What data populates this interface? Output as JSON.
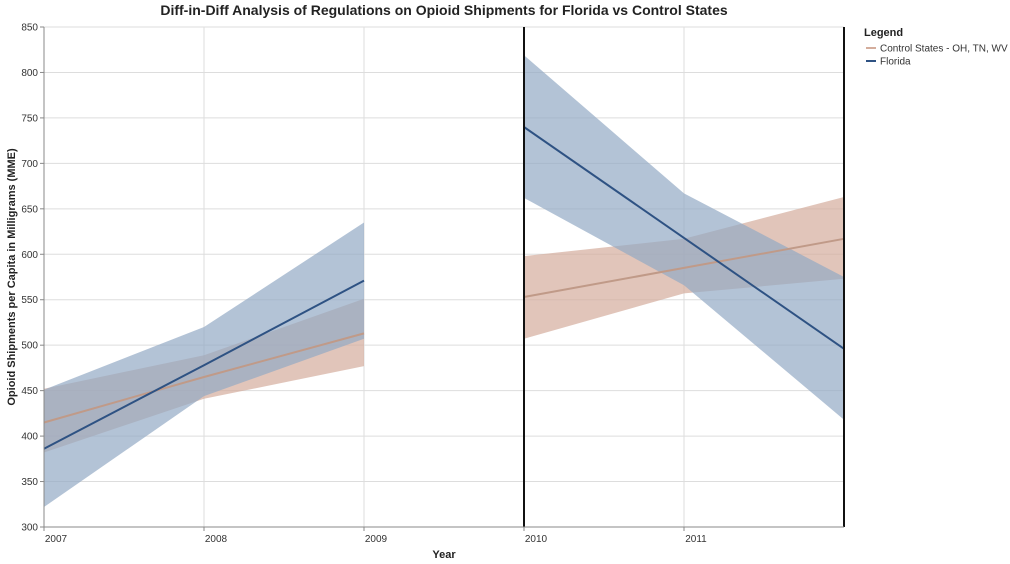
{
  "chart_data": {
    "type": "line",
    "title": "Diff-in-Diff Analysis of Regulations on Opioid Shipments for Florida vs Control States",
    "xlabel": "Year",
    "ylabel": "Opioid Shipments per Capita in Milligrams (MME)",
    "xlim": [
      2007,
      2012
    ],
    "ylim": [
      300,
      850
    ],
    "x_ticks": [
      2007,
      2008,
      2009,
      2010,
      2011
    ],
    "y_ticks": [
      300,
      350,
      400,
      450,
      500,
      550,
      600,
      650,
      700,
      750,
      800,
      850
    ],
    "grid": true,
    "policy_lines": [
      2010,
      2012
    ],
    "legend": {
      "title": "Legend",
      "placement": "right",
      "entries": [
        "Control States - OH, TN, WV",
        "Florida"
      ]
    },
    "series": [
      {
        "name": "Control States - OH, TN, WV",
        "color": "#c09a88",
        "band_color": "#d4ad9c",
        "segments": [
          {
            "x": [
              2007,
              2008,
              2009
            ],
            "y": [
              415,
              465,
              513
            ],
            "lower": [
              382,
              441,
              477
            ],
            "upper": [
              452,
              489,
              551
            ]
          },
          {
            "x": [
              2010,
              2011,
              2012
            ],
            "y": [
              553,
              585,
              617
            ],
            "lower": [
              507,
              557,
              573
            ],
            "upper": [
              598,
              617,
              663
            ]
          }
        ]
      },
      {
        "name": "Florida",
        "color": "#2e5283",
        "band_color": "#93a9c4",
        "segments": [
          {
            "x": [
              2007,
              2008,
              2009
            ],
            "y": [
              386,
              478,
              571
            ],
            "lower": [
              322,
              444,
              507
            ],
            "upper": [
              451,
              520,
              635
            ]
          },
          {
            "x": [
              2010,
              2011,
              2012
            ],
            "y": [
              740,
              618,
              496
            ],
            "lower": [
              662,
              566,
              418
            ],
            "upper": [
              819,
              667,
              575
            ]
          }
        ]
      }
    ]
  }
}
